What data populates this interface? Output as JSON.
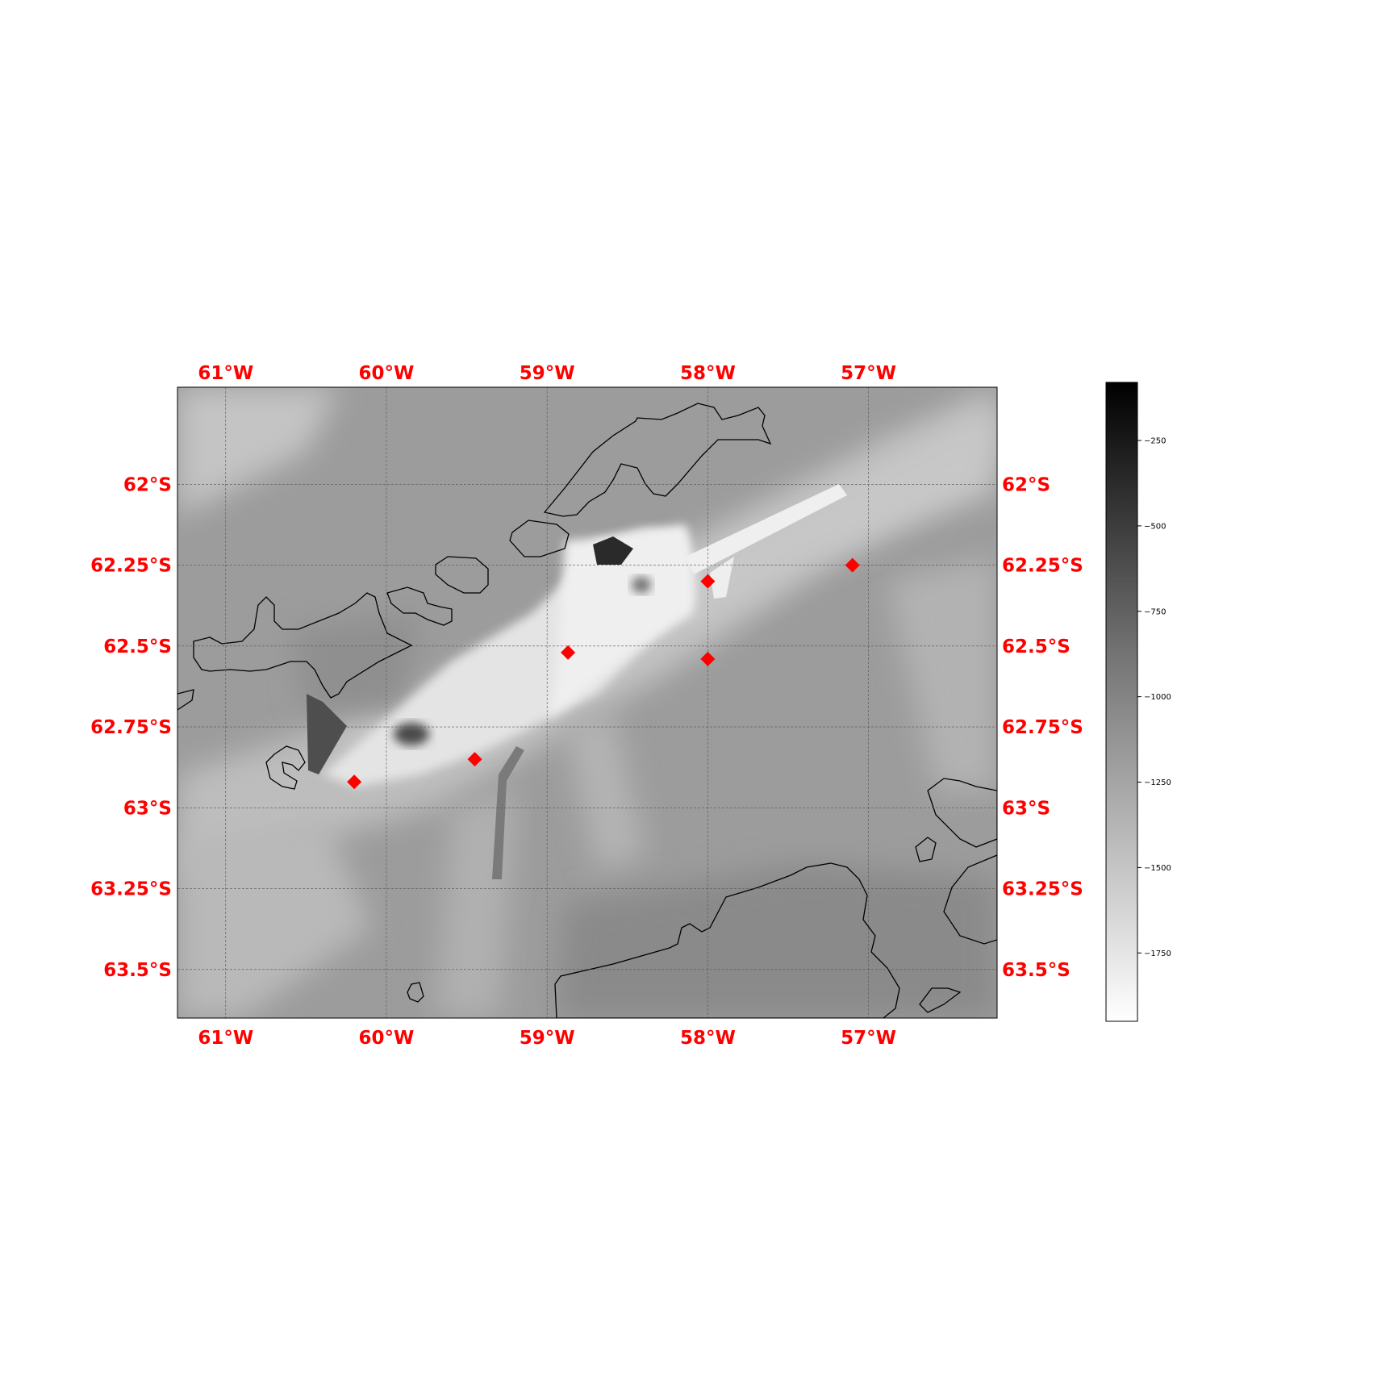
{
  "map": {
    "lon_range": [
      -61.3,
      -56.2
    ],
    "lat_range": [
      -63.65,
      -61.7
    ],
    "lon_ticks": [
      {
        "value": -61,
        "label": "61°W"
      },
      {
        "value": -60,
        "label": "60°W"
      },
      {
        "value": -59,
        "label": "59°W"
      },
      {
        "value": -58,
        "label": "58°W"
      },
      {
        "value": -57,
        "label": "57°W"
      }
    ],
    "lat_ticks": [
      {
        "value": -62,
        "label": "62°S"
      },
      {
        "value": -62.25,
        "label": "62.25°S"
      },
      {
        "value": -62.5,
        "label": "62.5°S"
      },
      {
        "value": -62.75,
        "label": "62.75°S"
      },
      {
        "value": -63,
        "label": "63°S"
      },
      {
        "value": -63.25,
        "label": "63.25°S"
      },
      {
        "value": -63.5,
        "label": "63.5°S"
      }
    ],
    "tick_label_color": "#ff0000",
    "gridlines": true,
    "coastline_color": "#000000",
    "marker_color": "#ff0000",
    "marker_shape": "diamond",
    "markers": [
      {
        "lon": -60.2,
        "lat": -62.92
      },
      {
        "lon": -59.45,
        "lat": -62.85
      },
      {
        "lon": -58.87,
        "lat": -62.52
      },
      {
        "lon": -58.0,
        "lat": -62.3
      },
      {
        "lon": -58.0,
        "lat": -62.54
      },
      {
        "lon": -57.1,
        "lat": -62.25
      }
    ]
  },
  "colorbar": {
    "colormap": "gray_r",
    "range": [
      -1950,
      -80
    ],
    "ticks": [
      {
        "value": -250,
        "label": "−250"
      },
      {
        "value": -500,
        "label": "−500"
      },
      {
        "value": -750,
        "label": "−750"
      },
      {
        "value": -1000,
        "label": "−1000"
      },
      {
        "value": -1250,
        "label": "−1250"
      },
      {
        "value": -1500,
        "label": "−1500"
      },
      {
        "value": -1750,
        "label": "−1750"
      }
    ]
  }
}
